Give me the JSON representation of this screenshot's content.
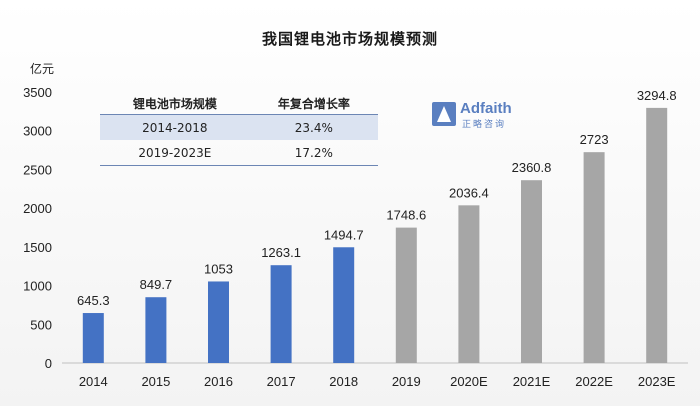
{
  "chart_data": {
    "type": "bar",
    "title": "我国锂电池市场规模预测",
    "unit_label": "亿元",
    "categories": [
      "2014",
      "2015",
      "2016",
      "2017",
      "2018",
      "2019",
      "2020E",
      "2021E",
      "2022E",
      "2023E"
    ],
    "values": [
      645.3,
      849.7,
      1053,
      1263.1,
      1494.7,
      1748.6,
      2036.4,
      2360.8,
      2723,
      3294.8
    ],
    "value_labels": [
      "645.3",
      "849.7",
      "1053",
      "1263.1",
      "1494.7",
      "1748.6",
      "2036.4",
      "2360.8",
      "2723",
      "3294.8"
    ],
    "actual_count": 5,
    "ylim": [
      0,
      3500
    ],
    "yticks": [
      0,
      500,
      1000,
      1500,
      2000,
      2500,
      3000,
      3500
    ],
    "grid": false,
    "colors": {
      "actual": "#4472c4",
      "forecast": "#a6a6a6"
    }
  },
  "cagr_table": {
    "headers": [
      "锂电池市场规模",
      "年复合增长率"
    ],
    "rows": [
      {
        "period": "2014-2018",
        "rate": "23.4%"
      },
      {
        "period": "2019-2023E",
        "rate": "17.2%"
      }
    ]
  },
  "logo": {
    "name": "Adfaith",
    "subtitle": "正略咨询",
    "icon": "adfaith-logo-icon",
    "color": "#5a7fc0"
  }
}
